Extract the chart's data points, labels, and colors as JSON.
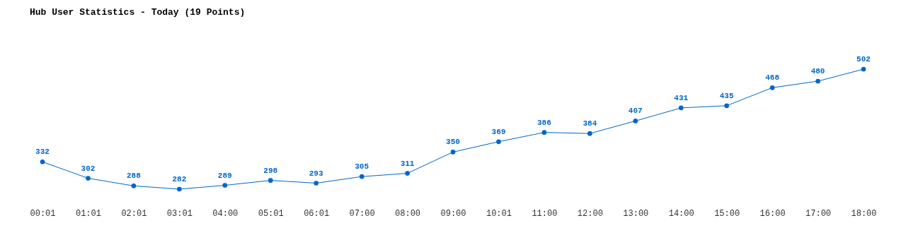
{
  "chart_data": {
    "type": "line",
    "title": "Hub User Statistics - Today (19 Points)",
    "categories": [
      "00:01",
      "01:01",
      "02:01",
      "03:01",
      "04:00",
      "05:01",
      "06:01",
      "07:00",
      "08:00",
      "09:00",
      "10:01",
      "11:00",
      "12:00",
      "13:00",
      "14:00",
      "15:00",
      "16:00",
      "17:00",
      "18:00"
    ],
    "values": [
      332,
      302,
      288,
      282,
      289,
      298,
      293,
      305,
      311,
      350,
      369,
      386,
      384,
      407,
      431,
      435,
      468,
      480,
      502
    ],
    "color": "#0066cc",
    "marker": "circle",
    "line_style": "solid",
    "data_labels": true,
    "grid": false
  }
}
